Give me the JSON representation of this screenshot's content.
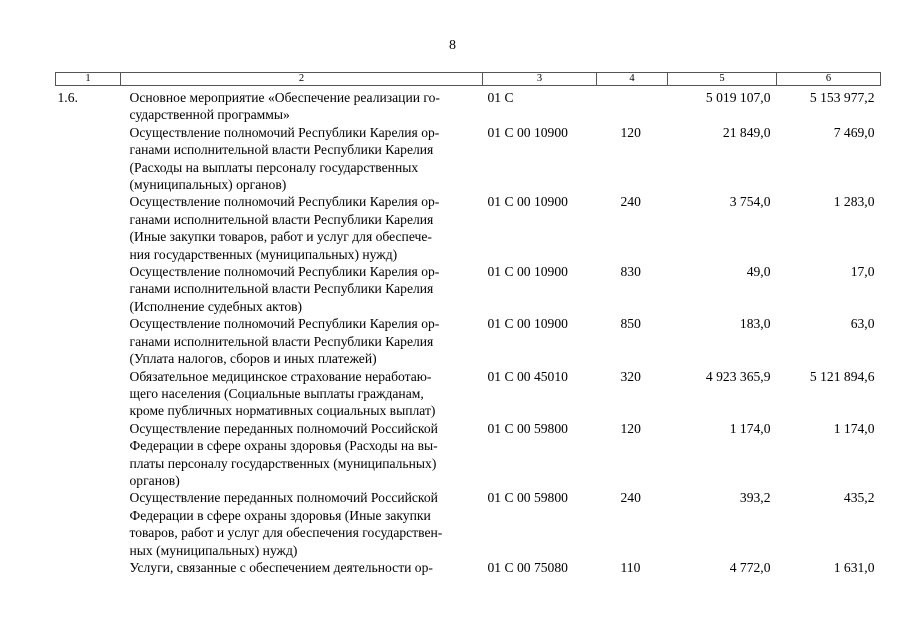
{
  "page_number": "8",
  "table": {
    "headers": [
      "1",
      "2",
      "3",
      "4",
      "5",
      "6"
    ],
    "rows": [
      {
        "num": "1.6.",
        "name": "Основное мероприятие «Обеспечение реализации го-\nсударственной программы»",
        "code": "01 C",
        "type": "",
        "v5": "5 019 107,0",
        "v6": "5 153 977,2"
      },
      {
        "num": "",
        "name": "Осуществление полномочий Республики Карелия ор-\nганами исполнительной власти Республики Карелия\n(Расходы на выплаты персоналу государственных\n(муниципальных) органов)",
        "code": "01 C 00 10900",
        "type": "120",
        "v5": "21 849,0",
        "v6": "7 469,0"
      },
      {
        "num": "",
        "name": "Осуществление полномочий Республики Карелия ор-\nганами исполнительной власти Республики Карелия\n(Иные закупки товаров, работ и услуг для обеспече-\nния государственных (муниципальных) нужд)",
        "code": "01 C 00 10900",
        "type": "240",
        "v5": "3 754,0",
        "v6": "1 283,0"
      },
      {
        "num": "",
        "name": "Осуществление полномочий Республики Карелия ор-\nганами исполнительной власти Республики Карелия\n(Исполнение судебных актов)",
        "code": "01 C 00 10900",
        "type": "830",
        "v5": "49,0",
        "v6": "17,0"
      },
      {
        "num": "",
        "name": "Осуществление полномочий Республики Карелия ор-\nганами исполнительной власти Республики Карелия\n(Уплата налогов, сборов и иных платежей)",
        "code": "01 C 00 10900",
        "type": "850",
        "v5": "183,0",
        "v6": "63,0"
      },
      {
        "num": "",
        "name": "Обязательное медицинское страхование неработаю-\nщего населения (Социальные выплаты гражданам,\nкроме публичных нормативных социальных выплат)",
        "code": "01 C 00 45010",
        "type": "320",
        "v5": "4 923 365,9",
        "v6": "5 121 894,6"
      },
      {
        "num": "",
        "name": "Осуществление переданных полномочий Российской\nФедерации в сфере охраны здоровья (Расходы на вы-\nплаты персоналу государственных (муниципальных)\nорганов)",
        "code": "01 C 00 59800",
        "type": "120",
        "v5": "1 174,0",
        "v6": "1 174,0"
      },
      {
        "num": "",
        "name": "Осуществление переданных полномочий Российской\nФедерации в сфере охраны здоровья (Иные закупки\nтоваров, работ и услуг для обеспечения государствен-\nных (муниципальных) нужд)",
        "code": "01 C 00 59800",
        "type": "240",
        "v5": "393,2",
        "v6": "435,2"
      },
      {
        "num": "",
        "name": "Услуги, связанные с обеспечением деятельности ор-",
        "code": "01 C 00 75080",
        "type": "110",
        "v5": "4 772,0",
        "v6": "1 631,0"
      }
    ]
  }
}
